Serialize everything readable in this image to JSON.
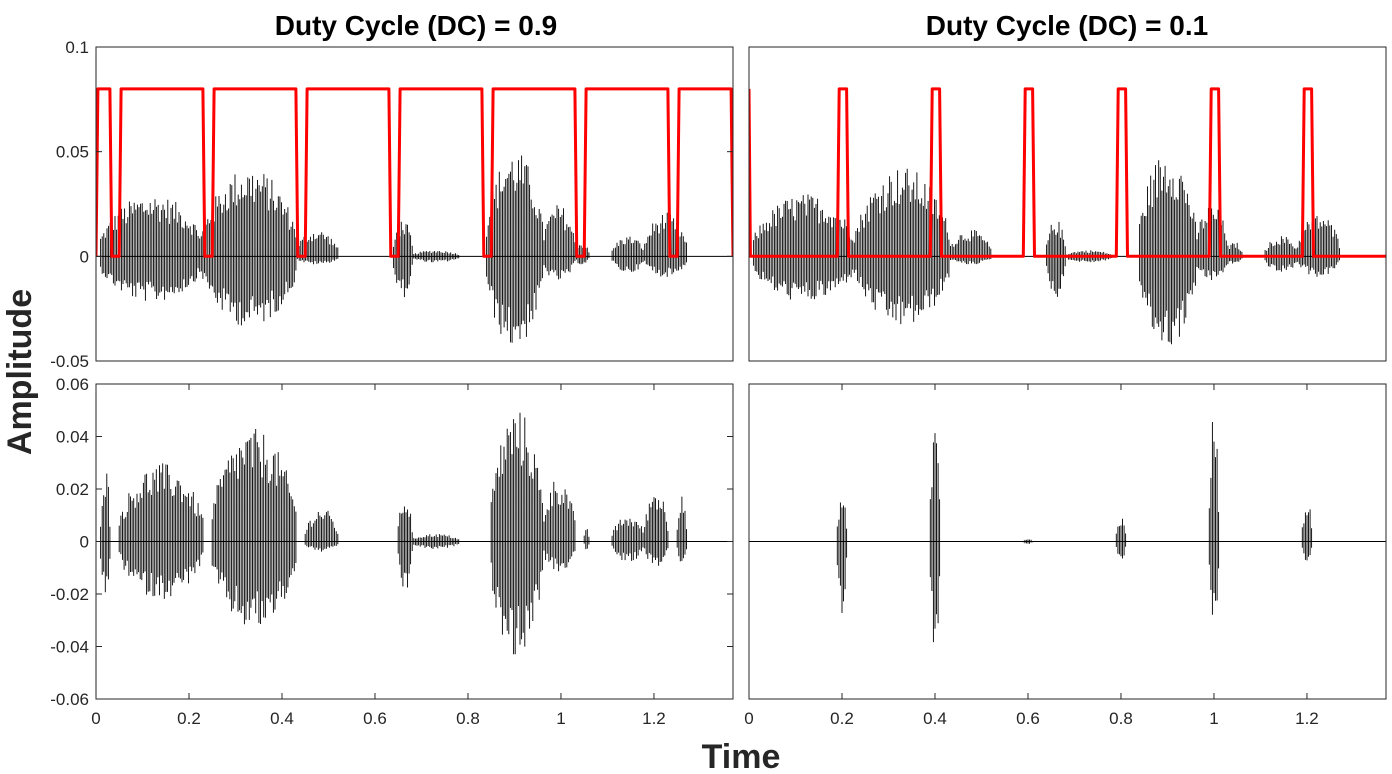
{
  "figure": {
    "ylabel": "Amplitude",
    "xlabel": "Time"
  },
  "chart_data": [
    {
      "type": "line",
      "title": "Duty Cycle (DC) = 0.9",
      "panel": "top-left",
      "xlim": [
        0,
        1.37
      ],
      "ylim": [
        -0.05,
        0.1
      ],
      "yticks": [
        -0.05,
        0,
        0.05,
        0.1
      ],
      "ytick_labels": [
        "-0.05",
        "0",
        "0.05",
        "0.1"
      ],
      "xticks": [],
      "series": [
        {
          "kind": "waveform",
          "color": "#000000",
          "segments": [
            {
              "x0": 0.01,
              "x1": 0.23,
              "pos": 0.03,
              "neg": 0.022
            },
            {
              "x0": 0.23,
              "x1": 0.43,
              "pos": 0.043,
              "neg": 0.034
            },
            {
              "x0": 0.43,
              "x1": 0.52,
              "pos": 0.013,
              "neg": 0.004
            },
            {
              "x0": 0.64,
              "x1": 0.68,
              "pos": 0.018,
              "neg": 0.02
            },
            {
              "x0": 0.68,
              "x1": 0.78,
              "pos": 0.003,
              "neg": 0.003
            },
            {
              "x0": 0.84,
              "x1": 0.96,
              "pos": 0.051,
              "neg": 0.044
            },
            {
              "x0": 0.96,
              "x1": 1.03,
              "pos": 0.025,
              "neg": 0.012
            },
            {
              "x0": 1.03,
              "x1": 1.06,
              "pos": 0.007,
              "neg": 0.004
            },
            {
              "x0": 1.11,
              "x1": 1.18,
              "pos": 0.01,
              "neg": 0.008
            },
            {
              "x0": 1.18,
              "x1": 1.27,
              "pos": 0.021,
              "neg": 0.01
            }
          ]
        },
        {
          "kind": "pulse_train",
          "color": "#ff0000",
          "high": 0.08,
          "low": 0,
          "x_start": 0.0,
          "x_end": 1.37,
          "period": 0.2,
          "first_low_start": 0.03,
          "low_duration": 0.02
        }
      ]
    },
    {
      "type": "line",
      "title": "Duty Cycle (DC) = 0.1",
      "panel": "top-right",
      "xlim": [
        0,
        1.37
      ],
      "ylim": [
        -0.05,
        0.1
      ],
      "yticks": [],
      "xticks": [],
      "series": [
        {
          "kind": "waveform",
          "color": "#000000",
          "segments": [
            {
              "x0": 0.01,
              "x1": 0.23,
              "pos": 0.03,
              "neg": 0.022
            },
            {
              "x0": 0.23,
              "x1": 0.43,
              "pos": 0.043,
              "neg": 0.034
            },
            {
              "x0": 0.43,
              "x1": 0.52,
              "pos": 0.013,
              "neg": 0.004
            },
            {
              "x0": 0.64,
              "x1": 0.68,
              "pos": 0.018,
              "neg": 0.02
            },
            {
              "x0": 0.68,
              "x1": 0.78,
              "pos": 0.003,
              "neg": 0.003
            },
            {
              "x0": 0.84,
              "x1": 0.96,
              "pos": 0.051,
              "neg": 0.044
            },
            {
              "x0": 0.96,
              "x1": 1.03,
              "pos": 0.025,
              "neg": 0.012
            },
            {
              "x0": 1.03,
              "x1": 1.06,
              "pos": 0.007,
              "neg": 0.004
            },
            {
              "x0": 1.11,
              "x1": 1.18,
              "pos": 0.01,
              "neg": 0.008
            },
            {
              "x0": 1.18,
              "x1": 1.27,
              "pos": 0.021,
              "neg": 0.01
            }
          ]
        },
        {
          "kind": "pulse_train",
          "color": "#ff0000",
          "high": 0.08,
          "low": 0,
          "x_start": 0.0,
          "x_end": 1.37,
          "period": 0.2,
          "first_high_start": -0.01,
          "high_duration": 0.02
        }
      ]
    },
    {
      "type": "line",
      "title": "",
      "panel": "bottom-left",
      "xlim": [
        0,
        1.37
      ],
      "ylim": [
        -0.06,
        0.06
      ],
      "yticks": [
        -0.06,
        -0.04,
        -0.02,
        0,
        0.02,
        0.04,
        0.06
      ],
      "ytick_labels": [
        "-0.06",
        "-0.04",
        "-0.02",
        "0",
        "0.02",
        "0.04",
        "0.06"
      ],
      "xticks": [
        0,
        0.2,
        0.4,
        0.6,
        0.8,
        1,
        1.2
      ],
      "xtick_labels": [
        "0",
        "0.2",
        "0.4",
        "0.6",
        "0.8",
        "1",
        "1.2"
      ],
      "series": [
        {
          "kind": "waveform",
          "color": "#000000",
          "segments": [
            {
              "x0": 0.01,
              "x1": 0.03,
              "pos": 0.03,
              "neg": 0.022
            },
            {
              "x0": 0.05,
              "x1": 0.23,
              "pos": 0.03,
              "neg": 0.022
            },
            {
              "x0": 0.25,
              "x1": 0.43,
              "pos": 0.043,
              "neg": 0.034
            },
            {
              "x0": 0.45,
              "x1": 0.52,
              "pos": 0.013,
              "neg": 0.004
            },
            {
              "x0": 0.65,
              "x1": 0.68,
              "pos": 0.018,
              "neg": 0.02
            },
            {
              "x0": 0.68,
              "x1": 0.78,
              "pos": 0.003,
              "neg": 0.003
            },
            {
              "x0": 0.85,
              "x1": 0.96,
              "pos": 0.051,
              "neg": 0.044
            },
            {
              "x0": 0.96,
              "x1": 1.03,
              "pos": 0.025,
              "neg": 0.012
            },
            {
              "x0": 1.05,
              "x1": 1.06,
              "pos": 0.007,
              "neg": 0.004
            },
            {
              "x0": 1.11,
              "x1": 1.18,
              "pos": 0.01,
              "neg": 0.008
            },
            {
              "x0": 1.18,
              "x1": 1.23,
              "pos": 0.021,
              "neg": 0.01
            },
            {
              "x0": 1.25,
              "x1": 1.27,
              "pos": 0.021,
              "neg": 0.01
            }
          ]
        }
      ]
    },
    {
      "type": "line",
      "title": "",
      "panel": "bottom-right",
      "xlim": [
        0,
        1.37
      ],
      "ylim": [
        -0.06,
        0.06
      ],
      "yticks": [],
      "xticks": [
        0,
        0.2,
        0.4,
        0.6,
        0.8,
        1,
        1.2
      ],
      "xtick_labels": [
        "0",
        "0.2",
        "0.4",
        "0.6",
        "0.8",
        "1",
        "1.2"
      ],
      "series": [
        {
          "kind": "waveform",
          "color": "#000000",
          "segments": [
            {
              "x0": 0.19,
              "x1": 0.21,
              "pos": 0.018,
              "neg": 0.028
            },
            {
              "x0": 0.39,
              "x1": 0.41,
              "pos": 0.051,
              "neg": 0.044
            },
            {
              "x0": 0.59,
              "x1": 0.61,
              "pos": 0.001,
              "neg": 0.001
            },
            {
              "x0": 0.79,
              "x1": 0.81,
              "pos": 0.01,
              "neg": 0.008
            },
            {
              "x0": 0.99,
              "x1": 1.01,
              "pos": 0.051,
              "neg": 0.033
            },
            {
              "x0": 1.19,
              "x1": 1.21,
              "pos": 0.017,
              "neg": 0.008
            }
          ]
        }
      ]
    }
  ]
}
